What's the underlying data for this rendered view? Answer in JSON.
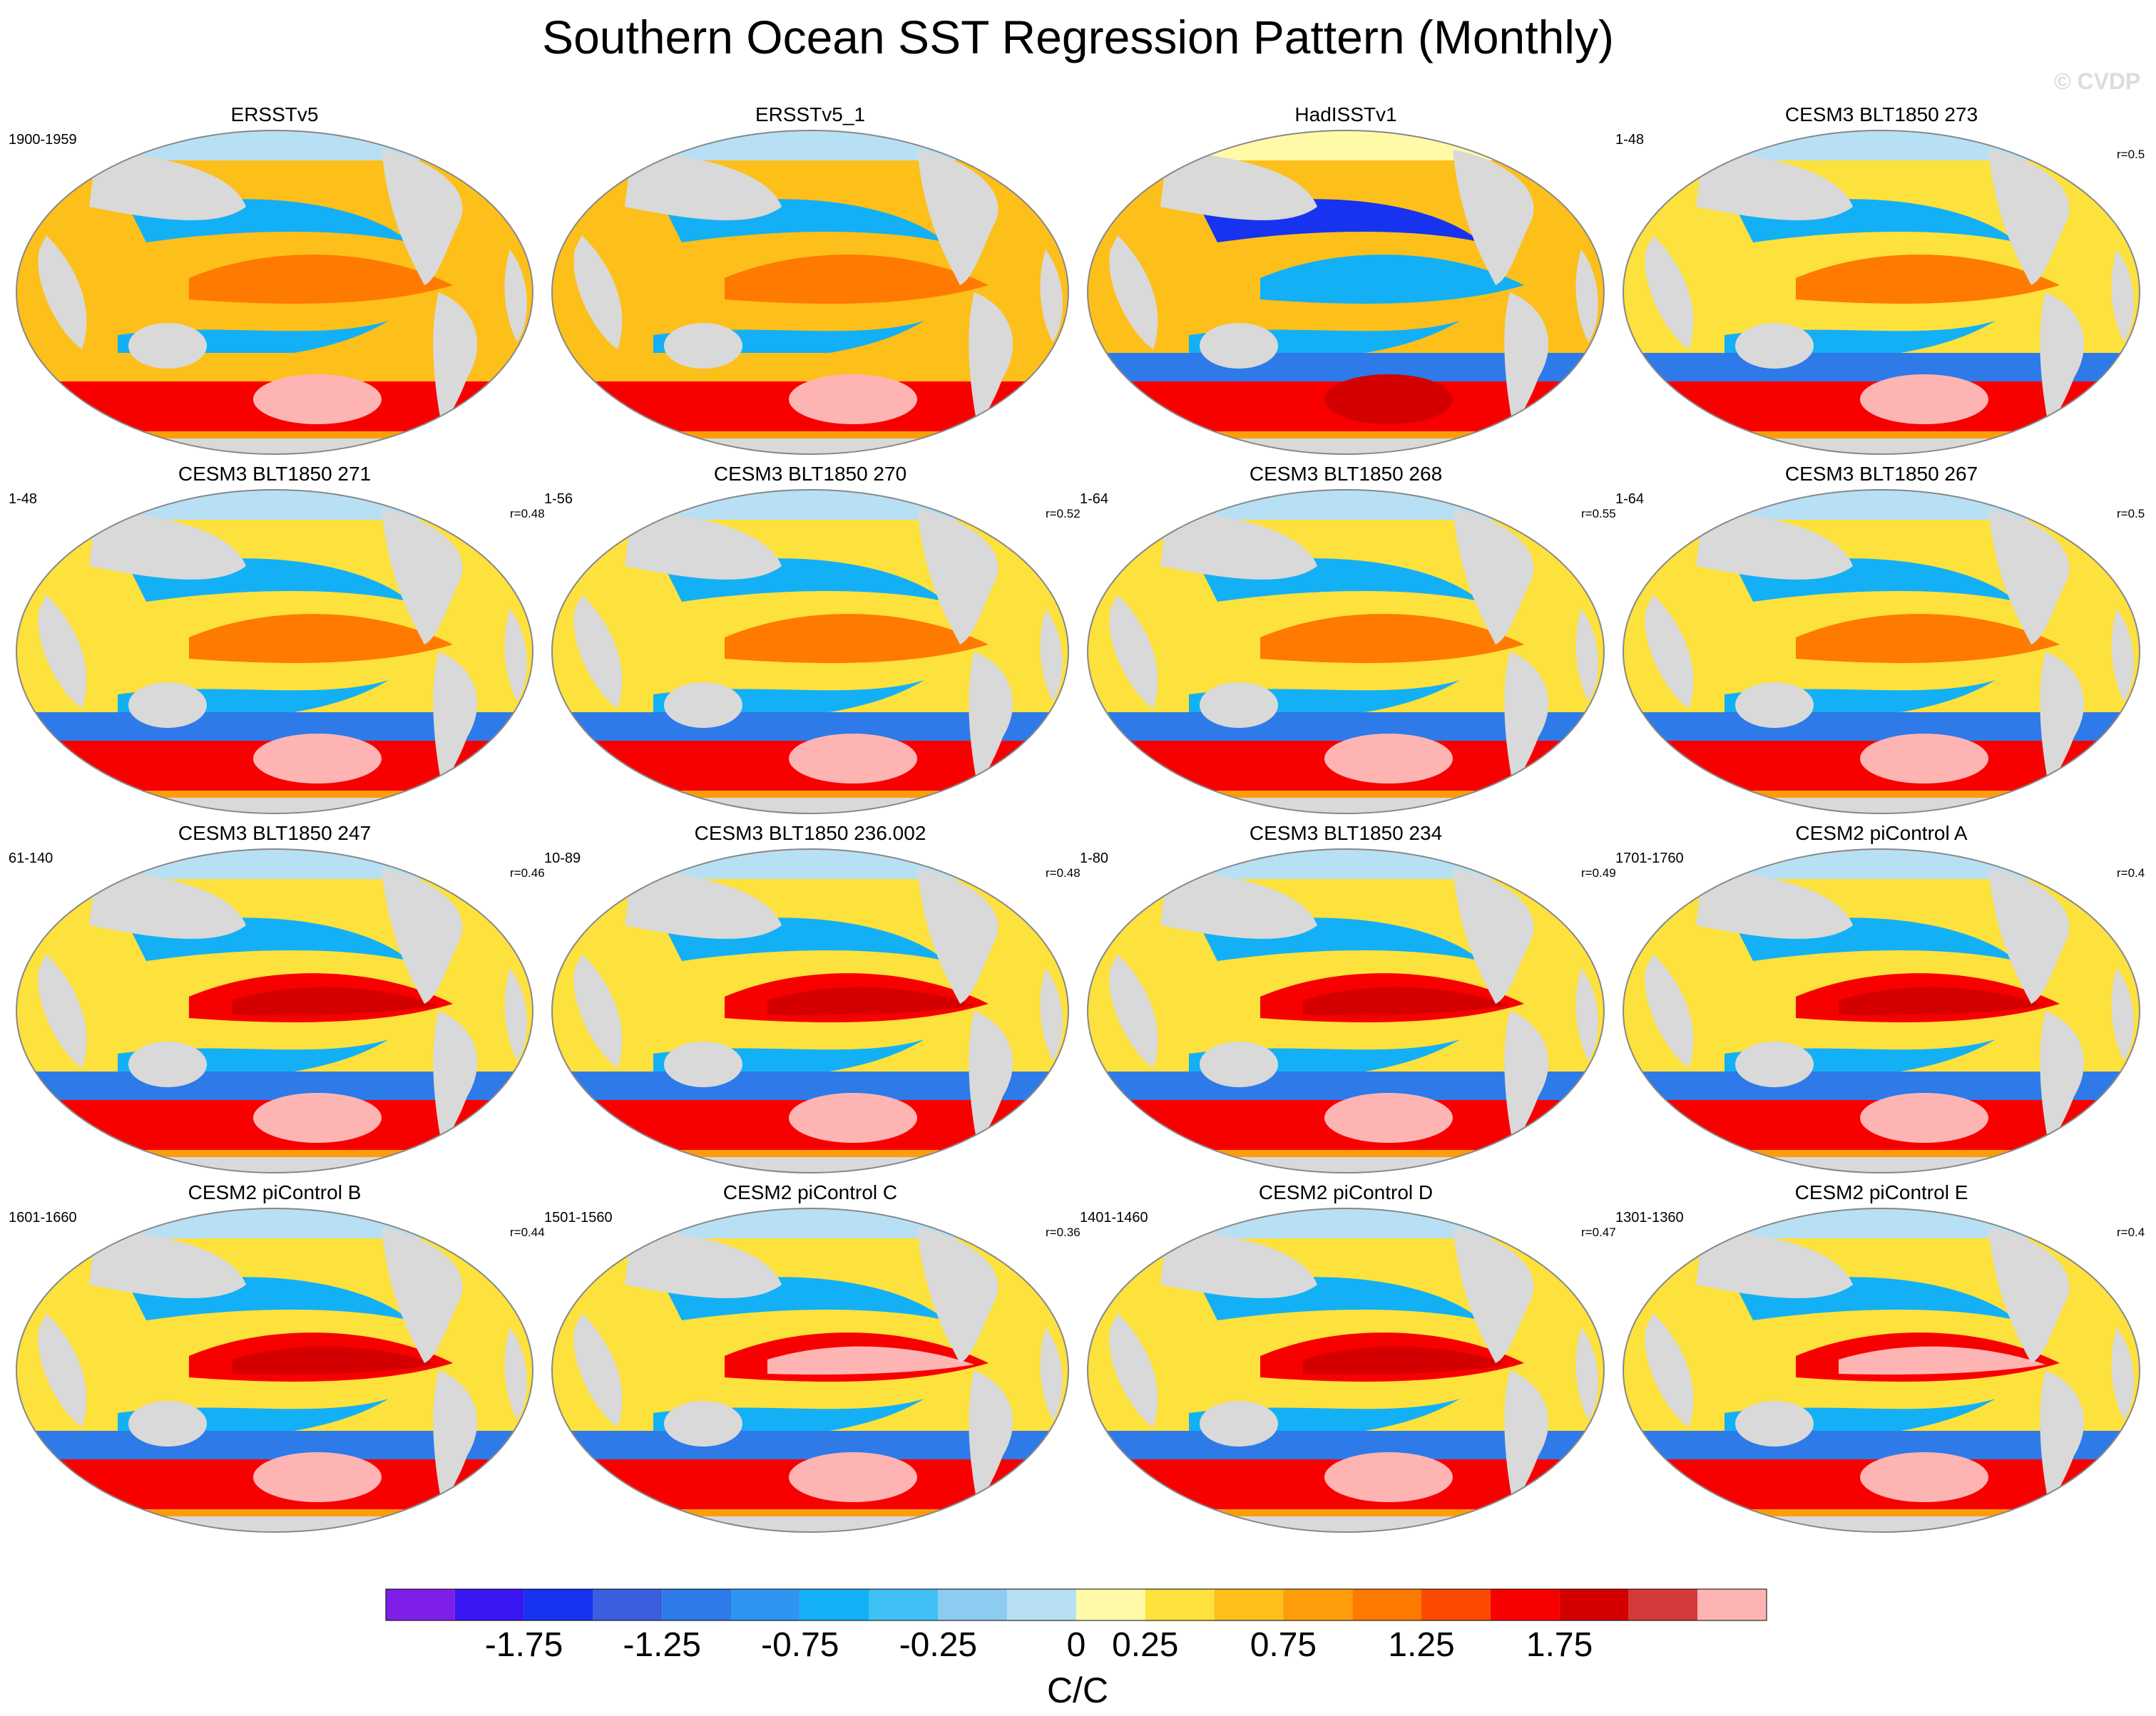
{
  "title": "Southern Ocean SST Regression Pattern (Monthly)",
  "watermark": "© CVDP",
  "panels": [
    {
      "title": "ERSSTv5",
      "years": "1900-1959",
      "corr": ""
    },
    {
      "title": "ERSSTv5_1",
      "years": "",
      "corr": ""
    },
    {
      "title": "HadISSTv1",
      "years": "",
      "corr": ""
    },
    {
      "title": "CESM3 BLT1850 273",
      "years": "1-48",
      "corr": "r=0.5"
    },
    {
      "title": "CESM3 BLT1850 271",
      "years": "1-48",
      "corr": "r=0.48"
    },
    {
      "title": "CESM3 BLT1850 270",
      "years": "1-56",
      "corr": "r=0.52"
    },
    {
      "title": "CESM3 BLT1850 268",
      "years": "1-64",
      "corr": "r=0.55"
    },
    {
      "title": "CESM3 BLT1850 267",
      "years": "1-64",
      "corr": "r=0.5"
    },
    {
      "title": "CESM3 BLT1850 247",
      "years": "61-140",
      "corr": "r=0.46"
    },
    {
      "title": "CESM3 BLT1850 236.002",
      "years": "10-89",
      "corr": "r=0.48"
    },
    {
      "title": "CESM3 BLT1850 234",
      "years": "1-80",
      "corr": "r=0.49"
    },
    {
      "title": "CESM2 piControl A",
      "years": "1701-1760",
      "corr": "r=0.4"
    },
    {
      "title": "CESM2 piControl B",
      "years": "1601-1660",
      "corr": "r=0.44"
    },
    {
      "title": "CESM2 piControl C",
      "years": "1501-1560",
      "corr": "r=0.36"
    },
    {
      "title": "CESM2 piControl D",
      "years": "1401-1460",
      "corr": "r=0.47"
    },
    {
      "title": "CESM2 piControl E",
      "years": "1301-1360",
      "corr": "r=0.4"
    }
  ],
  "colorbar": {
    "unit_label": "C/C",
    "tick_labels": [
      "-1.75",
      "-1.25",
      "-0.75",
      "-0.25",
      "0",
      "0.25",
      "0.75",
      "1.25",
      "1.75"
    ],
    "colors": [
      "#7e1fe8",
      "#3a16f2",
      "#1733f0",
      "#3b5de0",
      "#2e7ae8",
      "#2d95f0",
      "#14b0f5",
      "#3fc1f5",
      "#8dcbf0",
      "#b8e0f4",
      "#fffaa8",
      "#fde13c",
      "#fdbf1a",
      "#fd9d0a",
      "#fe7a00",
      "#fb4a00",
      "#f80000",
      "#d40000",
      "#d53a3a",
      "#ffb4b4"
    ]
  },
  "colors": {
    "land": "#d9d9d9",
    "ocean_outline": "#888888"
  }
}
